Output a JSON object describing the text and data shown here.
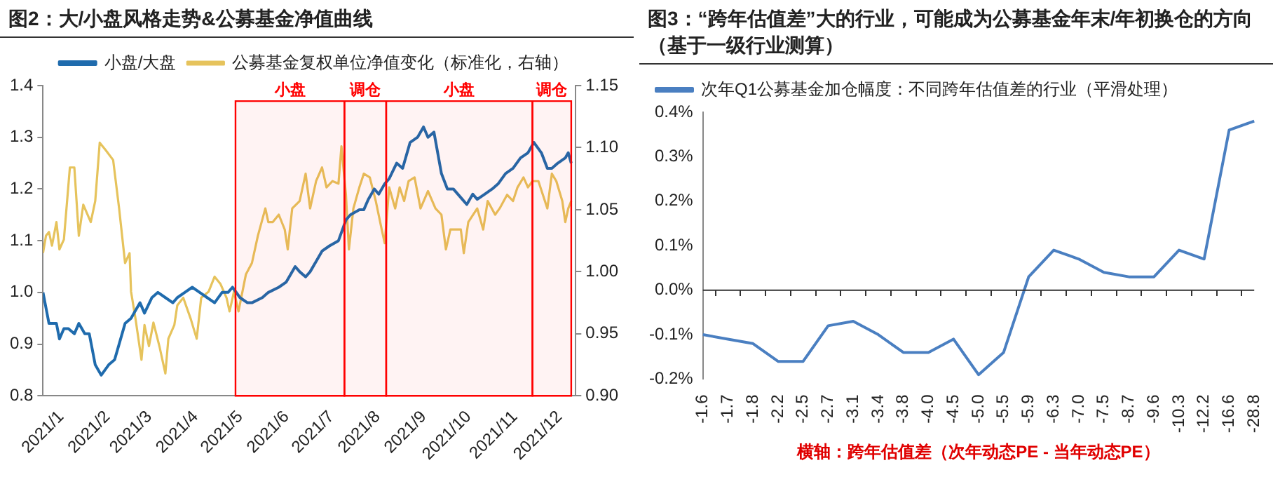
{
  "chart_data": [
    {
      "type": "line",
      "title": "图2：大/小盘风格走势&公募基金净值曲线",
      "legend": "top",
      "grid": false,
      "marker": "none",
      "line_style": "solid",
      "xlim": [
        "2021-01-01",
        "2021-12-24"
      ],
      "xticks": [
        {
          "value": "2021-01",
          "label": "2021/1"
        },
        {
          "value": "2021-02",
          "label": "2021/2"
        },
        {
          "value": "2021-03",
          "label": "2021/3"
        },
        {
          "value": "2021-04",
          "label": "2021/4"
        },
        {
          "value": "2021-05",
          "label": "2021/5"
        },
        {
          "value": "2021-06",
          "label": "2021/6"
        },
        {
          "value": "2021-07",
          "label": "2021/7"
        },
        {
          "value": "2021-08",
          "label": "2021/8"
        },
        {
          "value": "2021-09",
          "label": "2021/9"
        },
        {
          "value": "2021-10",
          "label": "2021/10"
        },
        {
          "value": "2021-11",
          "label": "2021/11"
        },
        {
          "value": "2021-12",
          "label": "2021/12"
        }
      ],
      "ylim": [
        0.8,
        1.4
      ],
      "yticks": [
        {
          "value": 0.8,
          "label": "0.8"
        },
        {
          "value": 0.9,
          "label": "0.9"
        },
        {
          "value": 1.0,
          "label": "1.0"
        },
        {
          "value": 1.1,
          "label": "1.1"
        },
        {
          "value": 1.2,
          "label": "1.2"
        },
        {
          "value": 1.3,
          "label": "1.3"
        },
        {
          "value": 1.4,
          "label": "1.4"
        }
      ],
      "y2lim": [
        0.9,
        1.15
      ],
      "y2ticks": [
        {
          "value": 0.9,
          "label": "0.90"
        },
        {
          "value": 0.95,
          "label": "0.95"
        },
        {
          "value": 1.0,
          "label": "1.00"
        },
        {
          "value": 1.05,
          "label": "1.05"
        },
        {
          "value": 1.1,
          "label": "1.10"
        },
        {
          "value": 1.15,
          "label": "1.15"
        }
      ],
      "bands": [
        {
          "axis": "x",
          "from": "2021-05-10",
          "to": "2021-07-22",
          "label": "小盘",
          "color": "#ff0000"
        },
        {
          "axis": "x",
          "from": "2021-07-22",
          "to": "2021-08-19",
          "label": "调仓",
          "color": "#ff0000"
        },
        {
          "axis": "x",
          "from": "2021-08-19",
          "to": "2021-11-25",
          "label": "小盘",
          "color": "#ff0000"
        },
        {
          "axis": "x",
          "from": "2021-11-25",
          "to": "2021-12-21",
          "label": "调仓",
          "color": "#ff0000"
        }
      ],
      "series": [
        {
          "name": "小盘/大盘",
          "color": "#1f6bad",
          "x": [
            "2021-01-01",
            "2021-01-05",
            "2021-01-10",
            "2021-01-12",
            "2021-01-15",
            "2021-01-18",
            "2021-01-22",
            "2021-01-25",
            "2021-01-29",
            "2021-02-01",
            "2021-02-03",
            "2021-02-05",
            "2021-02-09",
            "2021-02-14",
            "2021-02-18",
            "2021-02-21",
            "2021-02-25",
            "2021-03-01",
            "2021-03-03",
            "2021-03-07",
            "2021-03-10",
            "2021-03-15",
            "2021-03-19",
            "2021-03-24",
            "2021-03-29",
            "2021-04-01",
            "2021-04-06",
            "2021-04-11",
            "2021-04-16",
            "2021-04-21",
            "2021-04-26",
            "2021-05-01",
            "2021-05-05",
            "2021-05-08",
            "2021-05-13",
            "2021-05-18",
            "2021-05-21",
            "2021-05-28",
            "2021-06-01",
            "2021-06-08",
            "2021-06-13",
            "2021-06-19",
            "2021-06-22",
            "2021-06-26",
            "2021-06-29",
            "2021-07-03",
            "2021-07-07",
            "2021-07-12",
            "2021-07-18",
            "2021-07-23",
            "2021-07-26",
            "2021-08-01",
            "2021-08-04",
            "2021-08-07",
            "2021-08-11",
            "2021-08-14",
            "2021-08-18",
            "2021-08-21",
            "2021-08-26",
            "2021-08-30",
            "2021-09-04",
            "2021-09-09",
            "2021-09-13",
            "2021-09-16",
            "2021-09-20",
            "2021-09-25",
            "2021-09-29",
            "2021-10-03",
            "2021-10-09",
            "2021-10-12",
            "2021-10-16",
            "2021-10-19",
            "2021-10-24",
            "2021-10-29",
            "2021-11-02",
            "2021-11-07",
            "2021-11-12",
            "2021-11-17",
            "2021-11-22",
            "2021-11-26",
            "2021-12-01",
            "2021-12-05",
            "2021-12-08",
            "2021-12-12",
            "2021-12-17",
            "2021-12-19",
            "2021-12-21"
          ],
          "values": [
            1.0,
            0.94,
            0.94,
            0.91,
            0.93,
            0.93,
            0.92,
            0.94,
            0.92,
            0.92,
            0.89,
            0.86,
            0.84,
            0.86,
            0.87,
            0.9,
            0.94,
            0.95,
            0.96,
            0.98,
            0.96,
            0.99,
            1.0,
            0.99,
            0.98,
            0.99,
            1.0,
            1.01,
            1.0,
            0.99,
            0.98,
            1.0,
            1.0,
            1.01,
            0.99,
            0.98,
            0.98,
            0.99,
            1.0,
            1.01,
            1.02,
            1.05,
            1.04,
            1.03,
            1.04,
            1.06,
            1.08,
            1.09,
            1.1,
            1.14,
            1.15,
            1.16,
            1.16,
            1.18,
            1.2,
            1.19,
            1.21,
            1.22,
            1.25,
            1.24,
            1.29,
            1.3,
            1.32,
            1.3,
            1.31,
            1.23,
            1.2,
            1.2,
            1.18,
            1.17,
            1.19,
            1.18,
            1.19,
            1.2,
            1.21,
            1.23,
            1.24,
            1.26,
            1.27,
            1.29,
            1.27,
            1.24,
            1.24,
            1.25,
            1.26,
            1.27,
            1.25
          ]
        },
        {
          "name": "公募基金复权单位净值变化（标准化，右轴）",
          "color": "#e6c35c",
          "axis": "y2",
          "x": [
            "2021-01-01",
            "2021-01-03",
            "2021-01-05",
            "2021-01-07",
            "2021-01-10",
            "2021-01-12",
            "2021-01-15",
            "2021-01-19",
            "2021-01-22",
            "2021-01-25",
            "2021-01-28",
            "2021-02-02",
            "2021-02-05",
            "2021-02-08",
            "2021-02-12",
            "2021-02-17",
            "2021-02-21",
            "2021-02-25",
            "2021-02-28",
            "2021-03-01",
            "2021-03-04",
            "2021-03-08",
            "2021-03-10",
            "2021-03-13",
            "2021-03-16",
            "2021-03-20",
            "2021-03-24",
            "2021-03-26",
            "2021-03-30",
            "2021-04-01",
            "2021-04-05",
            "2021-04-10",
            "2021-04-14",
            "2021-04-17",
            "2021-04-22",
            "2021-04-26",
            "2021-04-30",
            "2021-05-04",
            "2021-05-06",
            "2021-05-09",
            "2021-05-12",
            "2021-05-17",
            "2021-05-21",
            "2021-05-25",
            "2021-05-30",
            "2021-06-01",
            "2021-06-04",
            "2021-06-08",
            "2021-06-12",
            "2021-06-14",
            "2021-06-17",
            "2021-06-22",
            "2021-06-26",
            "2021-06-29",
            "2021-07-03",
            "2021-07-07",
            "2021-07-10",
            "2021-07-14",
            "2021-07-18",
            "2021-07-20",
            "2021-07-23",
            "2021-07-25",
            "2021-07-28",
            "2021-08-01",
            "2021-08-04",
            "2021-08-08",
            "2021-08-12",
            "2021-08-16",
            "2021-08-18",
            "2021-08-21",
            "2021-08-25",
            "2021-08-28",
            "2021-08-31",
            "2021-09-03",
            "2021-09-07",
            "2021-09-11",
            "2021-09-16",
            "2021-09-21",
            "2021-09-25",
            "2021-09-28",
            "2021-10-01",
            "2021-10-08",
            "2021-10-10",
            "2021-10-13",
            "2021-10-19",
            "2021-10-23",
            "2021-10-26",
            "2021-10-31",
            "2021-11-03",
            "2021-11-08",
            "2021-11-12",
            "2021-11-15",
            "2021-11-19",
            "2021-11-22",
            "2021-11-25",
            "2021-11-29",
            "2021-12-02",
            "2021-12-05",
            "2021-12-08",
            "2021-12-11",
            "2021-12-15",
            "2021-12-17",
            "2021-12-19",
            "2021-12-21"
          ],
          "values": [
            1.015,
            1.029,
            1.032,
            1.021,
            1.04,
            1.018,
            1.026,
            1.084,
            1.084,
            1.029,
            1.054,
            1.04,
            1.057,
            1.104,
            1.098,
            1.09,
            1.051,
            1.007,
            1.015,
            0.984,
            0.962,
            0.929,
            0.957,
            0.94,
            0.959,
            0.94,
            0.918,
            0.946,
            0.957,
            0.973,
            0.979,
            0.962,
            0.946,
            0.979,
            0.984,
            0.996,
            0.99,
            0.979,
            0.968,
            0.984,
            0.968,
            0.998,
            1.007,
            1.029,
            1.051,
            1.04,
            1.04,
            1.046,
            1.034,
            1.018,
            1.051,
            1.057,
            1.079,
            1.051,
            1.073,
            1.084,
            1.068,
            1.073,
            1.071,
            1.101,
            1.062,
            1.018,
            1.051,
            1.068,
            1.079,
            1.076,
            1.057,
            1.034,
            1.023,
            1.068,
            1.051,
            1.068,
            1.057,
            1.073,
            1.076,
            1.051,
            1.065,
            1.051,
            1.046,
            1.018,
            1.034,
            1.034,
            1.015,
            1.04,
            1.051,
            1.034,
            1.057,
            1.046,
            1.051,
            1.062,
            1.057,
            1.068,
            1.076,
            1.068,
            1.073,
            1.073,
            1.062,
            1.051,
            1.079,
            1.073,
            1.057,
            1.04,
            1.051,
            1.057
          ]
        }
      ]
    },
    {
      "type": "line",
      "title": "图3：“跨年估值差”大的行业，可能成为公募基金年末/年初换仓的方向（基于一级行业测算）",
      "legend": "top left",
      "grid": false,
      "marker": "none",
      "line_style": "solid",
      "xlabel": "横轴：跨年估值差（次年动态PE - 当年动态PE）",
      "ref_lines": [
        {
          "axis": "y",
          "value": 0,
          "color": "#333333"
        }
      ],
      "categories": [
        "-1.6",
        "-1.7",
        "-1.8",
        "-2.2",
        "-2.5",
        "-2.7",
        "-3.1",
        "-3.4",
        "-3.8",
        "-4.0",
        "-4.5",
        "-5.0",
        "-5.5",
        "-5.9",
        "-6.3",
        "-7.0",
        "-7.5",
        "-8.7",
        "-9.6",
        "-10.3",
        "-12.2",
        "-16.6",
        "-28.8"
      ],
      "ylim": [
        -0.2,
        0.4
      ],
      "yticks": [
        {
          "value": -0.2,
          "label": "-0.2%"
        },
        {
          "value": -0.1,
          "label": "-0.1%"
        },
        {
          "value": 0,
          "label": "0.0%"
        },
        {
          "value": 0.1,
          "label": "0.1%"
        },
        {
          "value": 0.2,
          "label": "0.2%"
        },
        {
          "value": 0.3,
          "label": "0.3%"
        },
        {
          "value": 0.4,
          "label": "0.4%"
        }
      ],
      "series": [
        {
          "name": "次年Q1公募基金加仓幅度：不同跨年估值差的行业（平滑处理）",
          "color": "#4a7fc1",
          "values": [
            -0.1,
            -0.11,
            -0.12,
            -0.16,
            -0.16,
            -0.08,
            -0.07,
            -0.1,
            -0.14,
            -0.14,
            -0.11,
            -0.19,
            -0.14,
            0.03,
            0.09,
            0.07,
            0.04,
            0.03,
            0.03,
            0.09,
            0.07,
            0.36,
            0.38
          ]
        }
      ]
    }
  ]
}
